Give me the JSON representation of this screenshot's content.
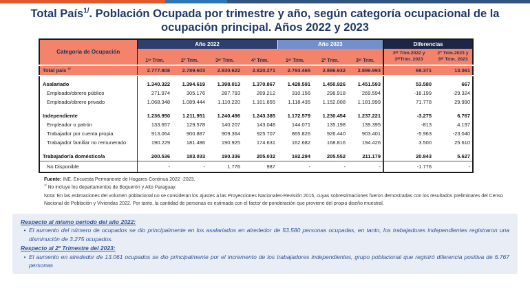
{
  "title": {
    "part1": "Total País",
    "sup": "1/",
    "part2": ". Población Ocupada por trimestre y año, según categoría ocupacional de la ocupación principal. Años 2022 y 2023"
  },
  "accent_colors": {
    "orange": "#E2582A",
    "blue": "#2E75B6",
    "navy": "#33547F",
    "salmon": "#F4836B",
    "year2022_bg": "#2D3E6F",
    "year2023_bg": "#7390CC",
    "diferencias_bg": "#1D2647",
    "highlight_box_bg": "#E9EDF5",
    "highlight_text": "#2F5496",
    "title_text": "#1F3864"
  },
  "table": {
    "category_header": "Categoría de Ocupación",
    "year2022_label": "Año 2022",
    "year2023_label": "Año 2023",
    "diferencias_label": "Diferencias",
    "quarters_2022": [
      "1ᵉʳ Trim.",
      "2º Trim.",
      "3ᵉʳ Trim.",
      "4º Trim."
    ],
    "quarters_2023": [
      "1ᵉʳ Trim.",
      "2º Trim.",
      "3ᵉʳ Trim."
    ],
    "diff_headers": [
      "3ᵉʳ Trim.2022 y 3ᵉʳTrim. 2023",
      "2º Trim.2023 y 3ᵉʳ Trim. 2023"
    ],
    "rows": [
      {
        "label": "Total país ",
        "sup": "1/",
        "style": "total",
        "values": [
          "2.777.808",
          "2.789.603",
          "2.830.622",
          "2.820.271",
          "2.793.465",
          "2.886.932",
          "2.899.993",
          "69.371",
          "13.061"
        ]
      },
      {
        "label": "Asalariado",
        "style": "group gap-sm",
        "values": [
          "1.340.322",
          "1.394.619",
          "1.398.013",
          "1.370.867",
          "1.428.591",
          "1.450.926",
          "1.451.593",
          "53.580",
          "667"
        ]
      },
      {
        "label": "Empleado/obrero público",
        "style": "sub",
        "values": [
          "271.974",
          "305.176",
          "287.793",
          "269.212",
          "310.156",
          "298.918",
          "269.594",
          "-18.199",
          "-29.324"
        ]
      },
      {
        "label": "Empleado/obrero privado",
        "style": "sub",
        "values": [
          "1.068.348",
          "1.089.444",
          "1.110.220",
          "1.101.655",
          "1.118.435",
          "1.152.008",
          "1.181.999",
          "71.778",
          "29.990"
        ]
      },
      {
        "label": "Independiente",
        "style": "group gap",
        "values": [
          "1.236.950",
          "1.211.951",
          "1.240.496",
          "1.243.385",
          "1.172.579",
          "1.230.454",
          "1.237.221",
          "-3.275",
          "6.767"
        ]
      },
      {
        "label": "Empleador o patrón",
        "style": "sub",
        "values": [
          "133.657",
          "129.578",
          "140.207",
          "143.048",
          "144.071",
          "135.198",
          "139.395",
          "-813",
          "4.197"
        ]
      },
      {
        "label": "Trabajador por cuenta propia",
        "style": "sub",
        "values": [
          "913.064",
          "900.887",
          "909.364",
          "925.707",
          "865.826",
          "926.440",
          "903.401",
          "-5.963",
          "-23.040"
        ]
      },
      {
        "label": "Trabajador familiar no remunerado",
        "style": "sub",
        "values": [
          "190.229",
          "181.486",
          "190.925",
          "174.631",
          "162.682",
          "168.816",
          "194.426",
          "3.500",
          "25.610"
        ]
      },
      {
        "label": "Trabajador/a doméstico/a",
        "style": "group gap",
        "values": [
          "200.536",
          "183.033",
          "190.336",
          "205.032",
          "192.294",
          "205.552",
          "211.179",
          "20.843",
          "5.627"
        ]
      },
      {
        "label": "No Disponible",
        "style": "nodisp",
        "values": [
          "-",
          "-",
          "1.776",
          "987",
          "-",
          "-",
          "-",
          "-1.776",
          "-"
        ]
      }
    ]
  },
  "footnotes": {
    "fuente_label": "Fuente:",
    "fuente_text": " INE. Encuesta Permanente de Hogares Continua 2022 -2023.",
    "note1_sup": "1/",
    "note1_text": " No incluye los departamentos de Boquerón y Alto Paraguay.",
    "nota": "Nota: En las estimaciones del volumen poblacional no se consideran los ajustes a las Proyecciones Nacionales-Revisión 2015, cuyas sobrestimaciones fueron demostradas con los resultados preliminares del Censo Nacional de Población y Viviendas 2022. Por tanto, la cantidad de personas es estimada con el factor de ponderación que proviene del propio diseño muestral."
  },
  "highlights": {
    "heading1": "Respecto al mismo periodo del año 2022:",
    "bullet1": "El aumento del número de ocupados se dio principalmente en los asalariados en alrededor de 53.580 personas ocupadas, en tanto, los trabajadores independientes registraron una disminución de 3.275 ocupados.",
    "heading2": "Respecto al 2º Trimestre del 2023:",
    "bullet2": "El aumento en alrededor de 13.061 ocupados se dio principalmente por el incremento de los trabajadores independientes, grupo poblacional que registró diferencia positiva de 6.767 personas",
    "bullet_glyph": "•"
  }
}
